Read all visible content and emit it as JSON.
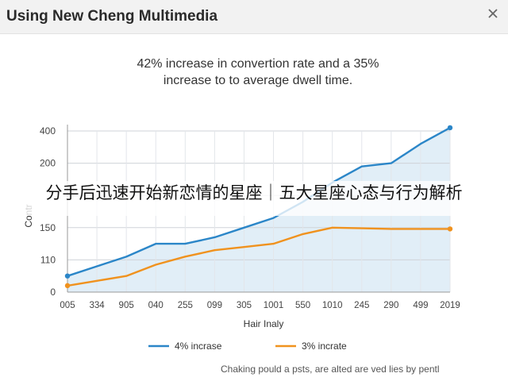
{
  "window": {
    "title": "Using New Cheng Multimedia",
    "close_icon": "close-icon"
  },
  "headline": {
    "line1": "42% increase in convertion rate and a 35%",
    "line2": "increase to to average dwell time."
  },
  "overlay": {
    "text": "分手后迅速开始新恋情的星座｜五大星座心态与行为解析"
  },
  "footnote": "Chaking pould a psts, are alted are ved lies by pentl",
  "colors": {
    "blue_series": "#2b86c8",
    "orange_series": "#f0921e",
    "area_fill": "#dcebf6",
    "grid": "#cfd3d8"
  },
  "chart_data": {
    "type": "line",
    "xlabel": "Hair Inaly",
    "ylabel": "Contr",
    "categories": [
      "005",
      "334",
      "905",
      "040",
      "255",
      "099",
      "305",
      "1001",
      "550",
      "1010",
      "245",
      "290",
      "499",
      "2019"
    ],
    "y_ticks": [
      {
        "label": "0",
        "value": 0
      },
      {
        "label": "110",
        "value": 1
      },
      {
        "label": "150",
        "value": 2
      },
      {
        "label": "",
        "value": 3
      },
      {
        "label": "200",
        "value": 4
      },
      {
        "label": "400",
        "value": 5
      }
    ],
    "ylim": [
      0,
      5
    ],
    "grid": true,
    "legend_position": "bottom",
    "series": [
      {
        "name": "4% incrase",
        "color": "#2b86c8",
        "values": [
          0.5,
          0.8,
          1.1,
          1.5,
          1.5,
          1.7,
          2.0,
          2.3,
          2.8,
          3.4,
          3.9,
          4.0,
          4.6,
          5.1
        ]
      },
      {
        "name": "3% incrate",
        "color": "#f0921e",
        "values": [
          0.2,
          0.35,
          0.5,
          0.85,
          1.1,
          1.3,
          1.4,
          1.5,
          1.8,
          2.0,
          1.98,
          1.96,
          1.96,
          1.96
        ]
      }
    ]
  }
}
